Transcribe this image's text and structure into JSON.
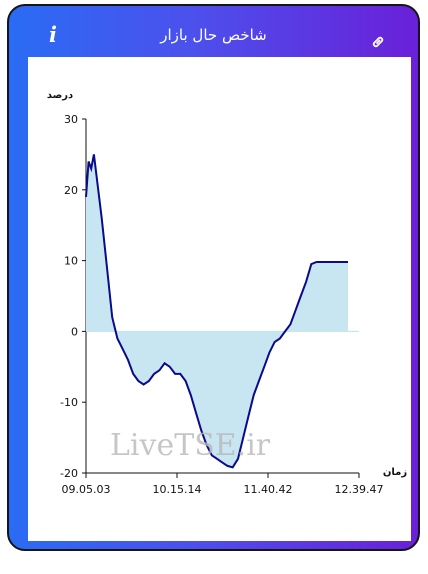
{
  "header": {
    "title": "شاخص حال بازار",
    "info_icon": "info-icon",
    "link_icon": "link-icon"
  },
  "colors": {
    "gradient_start": "#2a6cf4",
    "gradient_end": "#6a20d8",
    "line": "#0a0a8a",
    "fill": "#c8e6f2"
  },
  "watermark": "LiveTSE.ir",
  "chart_data": {
    "type": "area",
    "ylabel": "درصد",
    "xlabel": "زمان",
    "ylim": [
      -20,
      30
    ],
    "yticks": [
      -20,
      -10,
      0,
      10,
      20,
      30
    ],
    "xticks": [
      "09.05.03",
      "10.15.14",
      "11.40.42",
      "12.39.47"
    ],
    "grid": false,
    "series": [
      {
        "x": [
          0,
          0.01,
          0.02,
          0.03,
          0.04,
          0.05,
          0.06,
          0.08,
          0.1,
          0.12,
          0.14,
          0.16,
          0.18,
          0.2,
          0.22,
          0.24,
          0.26,
          0.28,
          0.3,
          0.32,
          0.34,
          0.36,
          0.38,
          0.4,
          0.42,
          0.44,
          0.46,
          0.48,
          0.5,
          0.52,
          0.54,
          0.56,
          0.58,
          0.6,
          0.62,
          0.64,
          0.66,
          0.68,
          0.7,
          0.72,
          0.74,
          0.76,
          0.78,
          0.8,
          0.82,
          0.84,
          0.86,
          0.88,
          0.9,
          0.92,
          0.94,
          0.96,
          0.97,
          0.98,
          1.0
        ],
        "y": [
          19,
          24,
          23,
          25,
          22,
          19,
          16,
          9,
          2,
          -1,
          -2.5,
          -4,
          -6,
          -7,
          -7.5,
          -7,
          -6,
          -5.5,
          -4.5,
          -5,
          -6,
          -6,
          -7,
          -9,
          -11.5,
          -14,
          -16,
          -17.5,
          -18,
          -18.5,
          -19,
          -19.2,
          -18,
          -15,
          -12,
          -9,
          -7,
          -5,
          -3,
          -1.5,
          -1,
          0,
          1,
          3,
          5,
          7,
          9.5,
          9.8,
          9.8,
          9.8,
          9.8,
          9.8,
          9.8,
          9.8,
          9.8
        ]
      }
    ]
  }
}
